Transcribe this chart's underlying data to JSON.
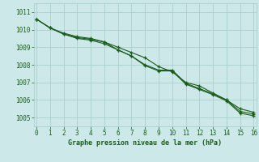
{
  "xlabel": "Graphe pression niveau de la mer (hPa)",
  "bg_color": "#cce8e8",
  "grid_color": "#aacfcf",
  "line_color": "#1a5c1a",
  "xlim": [
    -0.2,
    16.2
  ],
  "ylim": [
    1004.5,
    1011.5
  ],
  "yticks": [
    1005,
    1006,
    1007,
    1008,
    1009,
    1010,
    1011
  ],
  "xticks": [
    0,
    1,
    2,
    3,
    4,
    5,
    6,
    7,
    8,
    9,
    10,
    11,
    12,
    13,
    14,
    15,
    16
  ],
  "series": [
    [
      1010.6,
      1010.1,
      1009.8,
      1009.6,
      1009.5,
      1009.3,
      1009.0,
      1008.7,
      1008.4,
      1007.9,
      1007.6,
      1007.0,
      1006.8,
      1006.4,
      1006.0,
      1005.5,
      1005.3
    ],
    [
      1010.6,
      1010.1,
      1009.75,
      1009.5,
      1009.4,
      1009.2,
      1008.85,
      1008.5,
      1007.95,
      1007.65,
      1007.65,
      1006.9,
      1006.6,
      1006.3,
      1005.95,
      1005.25,
      1005.1
    ],
    [
      1010.6,
      1010.1,
      1009.75,
      1009.55,
      1009.45,
      1009.3,
      1008.85,
      1008.5,
      1008.0,
      1007.7,
      1007.7,
      1006.95,
      1006.65,
      1006.35,
      1006.0,
      1005.35,
      1005.2
    ]
  ]
}
